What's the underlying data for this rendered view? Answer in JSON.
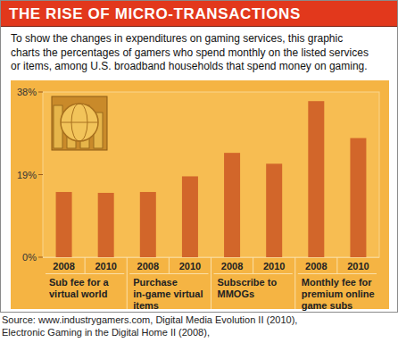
{
  "chart_data": {
    "type": "bar",
    "title": "THE RISE OF MICRO-TRANSACTIONS",
    "subtitle": [
      "To show the changes in expenditures on gaming services, this graphic",
      "charts the percentages of gamers who spend monthly on the listed services",
      "or items, among U.S. broadband households that spend money on gaming."
    ],
    "categories": [
      "Sub fee for a virtual world",
      "Purchase in-game virtual items",
      "Subscribe to MMOGs",
      "Monthly fee for premium online game subs"
    ],
    "series": [
      {
        "name": "2008",
        "color": "#d2662a",
        "values": [
          15.0,
          15.0,
          24.0,
          35.9
        ]
      },
      {
        "name": "2010",
        "color": "#d2662a",
        "values": [
          14.8,
          18.6,
          21.5,
          27.4
        ]
      }
    ],
    "ylim": [
      0,
      38
    ],
    "yticks": [
      {
        "value": 0,
        "label": "0%"
      },
      {
        "value": 19,
        "label": "19%"
      },
      {
        "value": 38,
        "label": "38%"
      }
    ],
    "grid": false,
    "source": [
      "Source: www.industrygamers.com, Digital Media Evolution II (2010),",
      "Electronic Gaming in the Digital Home II (2008),"
    ]
  }
}
